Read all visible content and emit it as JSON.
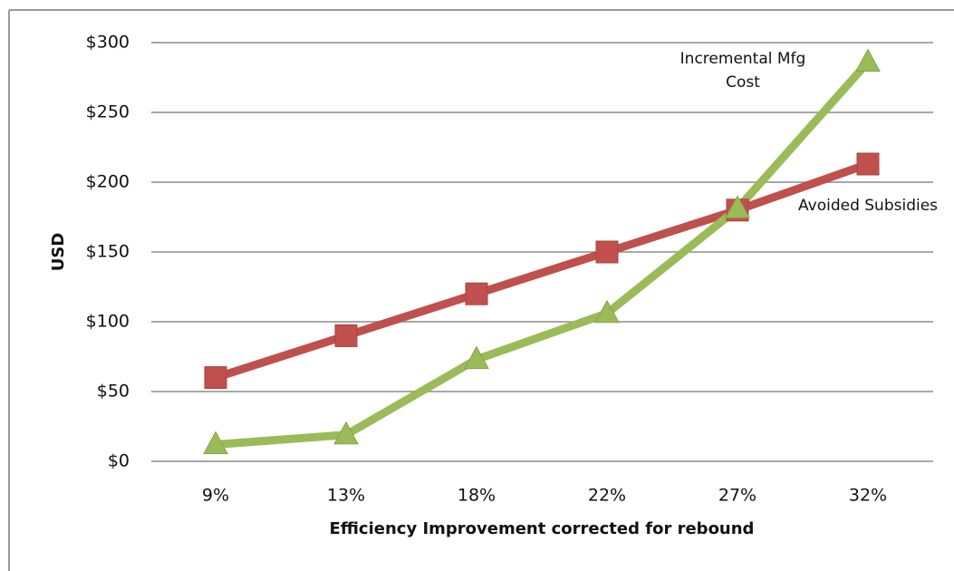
{
  "chart_data": {
    "type": "line",
    "x_label": "Efficiency Improvement corrected for rebound",
    "y_label": "USD",
    "categories": [
      "9%",
      "13%",
      "18%",
      "22%",
      "27%",
      "32%"
    ],
    "series": [
      {
        "name": "Avoided Subsidies",
        "color": "#c0504d",
        "marker": "square",
        "values": [
          60,
          90,
          120,
          150,
          180,
          213
        ]
      },
      {
        "name": "Incremental Mfg Cost",
        "color": "#9bbb59",
        "marker": "triangle",
        "values": [
          12,
          19,
          73,
          106,
          181,
          286
        ]
      }
    ],
    "ylim": [
      0,
      300
    ],
    "yticks": [
      {
        "value": 0,
        "label": "$0"
      },
      {
        "value": 50,
        "label": "$50"
      },
      {
        "value": 100,
        "label": "$100"
      },
      {
        "value": 150,
        "label": "$150"
      },
      {
        "value": 200,
        "label": "$200"
      },
      {
        "value": 250,
        "label": "$250"
      },
      {
        "value": 300,
        "label": "$300"
      }
    ],
    "grid": true
  }
}
